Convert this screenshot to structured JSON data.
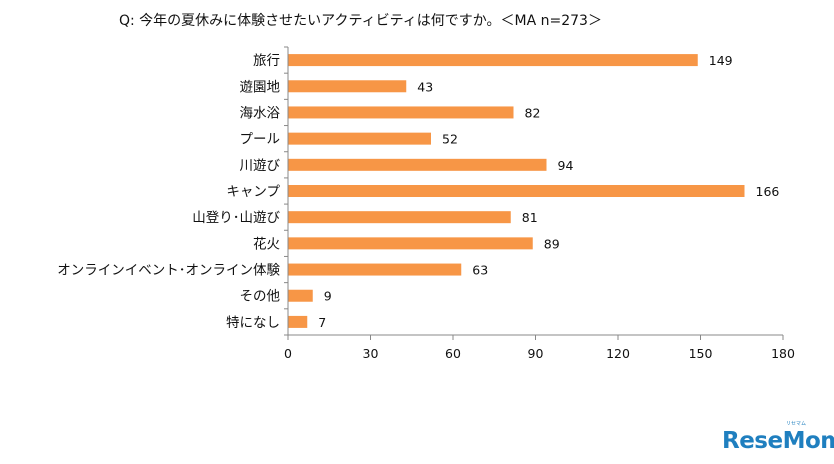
{
  "chart_data": {
    "type": "bar",
    "orientation": "horizontal",
    "title": "Q:  今年の夏休みに体験させたいアクティビティは何ですか。＜MA n=273＞",
    "categories": [
      "旅行",
      "遊園地",
      "海水浴",
      "プール",
      "川遊び",
      "キャンプ",
      "山登り･山遊び",
      "花火",
      "オンラインイベント･オンライン体験",
      "その他",
      "特になし"
    ],
    "values": [
      149,
      43,
      82,
      52,
      94,
      166,
      81,
      89,
      63,
      9,
      7
    ],
    "xlim": [
      0,
      180
    ],
    "xticks": [
      0,
      30,
      60,
      90,
      120,
      150,
      180
    ],
    "bar_color": "#f79646",
    "grid": false
  },
  "watermark": {
    "text": "ReseMom",
    "sub_text": "リセマム",
    "color": "#1f7fbf"
  }
}
